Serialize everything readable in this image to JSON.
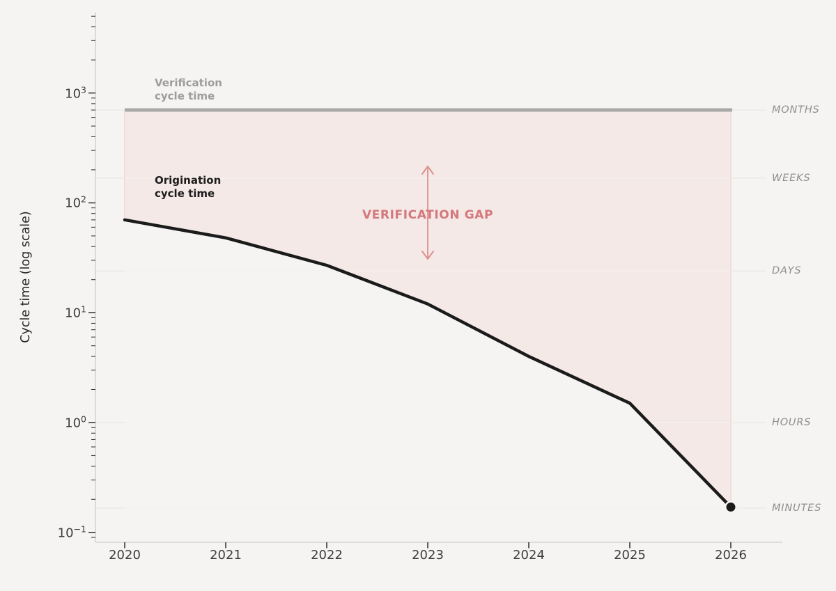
{
  "figure": {
    "annotations": {
      "verification": {
        "line1": "Verification",
        "line2": "cycle time"
      },
      "origination": {
        "line1": "Origination",
        "line2": "cycle time"
      },
      "gap": "VERIFICATION GAP"
    }
  },
  "chart_data": {
    "type": "line",
    "title": "",
    "xlabel": "",
    "ylabel": "Cycle time (log scale)",
    "yscale": "log",
    "x": [
      2020,
      2021,
      2022,
      2023,
      2024,
      2025,
      2026
    ],
    "series": [
      {
        "name": "Verification cycle time",
        "values": [
          700,
          700,
          700,
          700,
          700,
          700,
          700
        ]
      },
      {
        "name": "Origination cycle time",
        "values": [
          70,
          48,
          27,
          12,
          4,
          1.5,
          0.17
        ]
      }
    ],
    "area_between": {
      "upper": "Verification cycle time",
      "lower": "Origination cycle time",
      "label": "VERIFICATION GAP"
    },
    "y_tick_exponents": [
      -1,
      0,
      1,
      2,
      3
    ],
    "ylim": [
      0.085,
      5200
    ],
    "unit_levels": [
      {
        "label": "MONTHS",
        "value": 700
      },
      {
        "label": "WEEKS",
        "value": 168
      },
      {
        "label": "DAYS",
        "value": 24
      },
      {
        "label": "HOURS",
        "value": 1
      },
      {
        "label": "MINUTES",
        "value": 0.166
      }
    ],
    "grid": "horizontal-unit-levels",
    "legend_position": "inline-annotations",
    "end_marker": {
      "x": 2026,
      "series": "Origination cycle time"
    }
  },
  "colors": {
    "background": "#f5f4f3",
    "area_fill": "#f4e9e6",
    "area_edge": "#efded a",
    "verification_line": "#a9a9a9",
    "origination_line": "#1b1b1b",
    "accent_rose": "#d4787c",
    "arrow": "#dd918f",
    "grid": "#e9e5e3",
    "grid_on_area": "rgba(255,255,255,0.45)",
    "spine": "#d5d3d1",
    "tick": "#3a3a3a"
  }
}
